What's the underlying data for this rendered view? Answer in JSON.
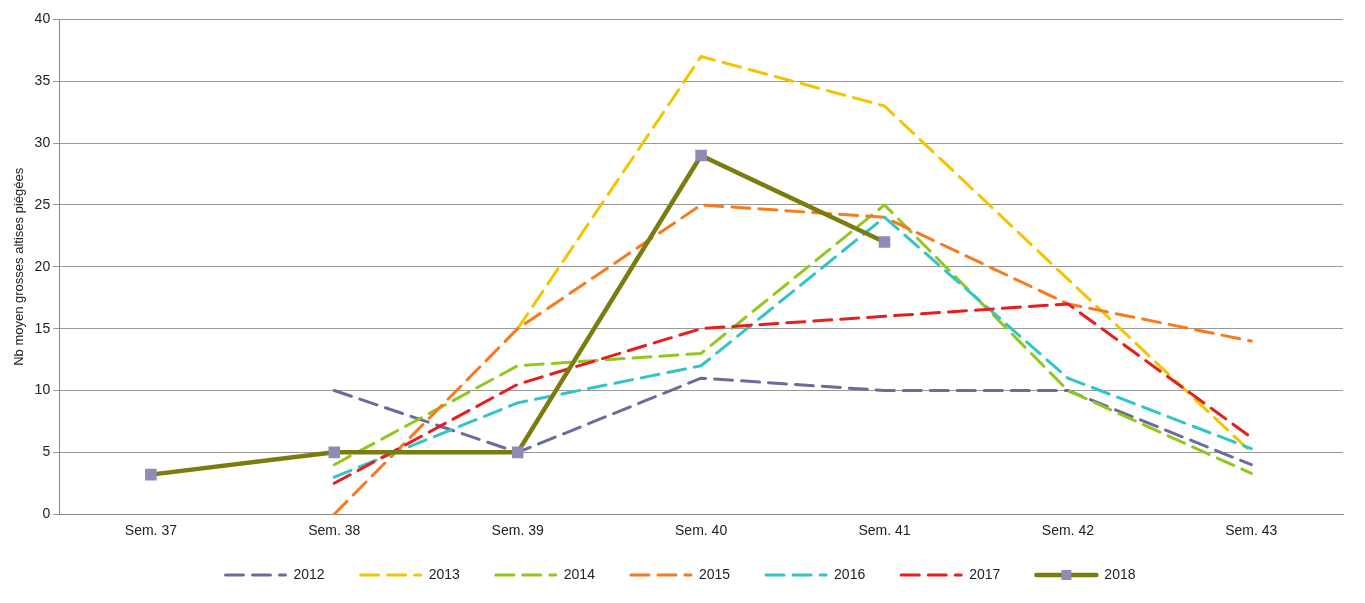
{
  "chart_data": {
    "type": "line",
    "ylabel": "Nb moyen grosses altises piégées",
    "categories": [
      "Sem. 37",
      "Sem. 38",
      "Sem. 39",
      "Sem. 40",
      "Sem. 41",
      "Sem. 42",
      "Sem. 43"
    ],
    "ylim": [
      0,
      40
    ],
    "yticks": [
      0,
      5,
      10,
      15,
      20,
      25,
      30,
      35,
      40
    ],
    "grid": "y",
    "legend": "bottom",
    "line_style": "dashed",
    "marker": "none",
    "series": [
      {
        "name": "2012",
        "color": "#6b6b9c",
        "values": [
          null,
          10,
          5,
          11,
          10,
          10,
          4
        ]
      },
      {
        "name": "2013",
        "color": "#f2c500",
        "values": [
          null,
          null,
          15,
          37,
          33,
          19,
          5
        ]
      },
      {
        "name": "2014",
        "color": "#92c81e",
        "values": [
          null,
          4,
          12,
          13,
          25,
          10,
          3.3
        ]
      },
      {
        "name": "2015",
        "color": "#f77a1c",
        "values": [
          null,
          0,
          15,
          25,
          24,
          17,
          14
        ]
      },
      {
        "name": "2016",
        "color": "#33c4c8",
        "values": [
          null,
          3,
          9,
          12,
          24,
          11,
          5.3
        ]
      },
      {
        "name": "2017",
        "color": "#e81d1d",
        "values": [
          null,
          2.5,
          10.5,
          15,
          16,
          17,
          6.2
        ]
      },
      {
        "name": "2018",
        "color": "#7b7c0e",
        "line_style": "solid",
        "marker": "square",
        "values": [
          3.2,
          5,
          5,
          29,
          22,
          null,
          null
        ]
      }
    ]
  }
}
